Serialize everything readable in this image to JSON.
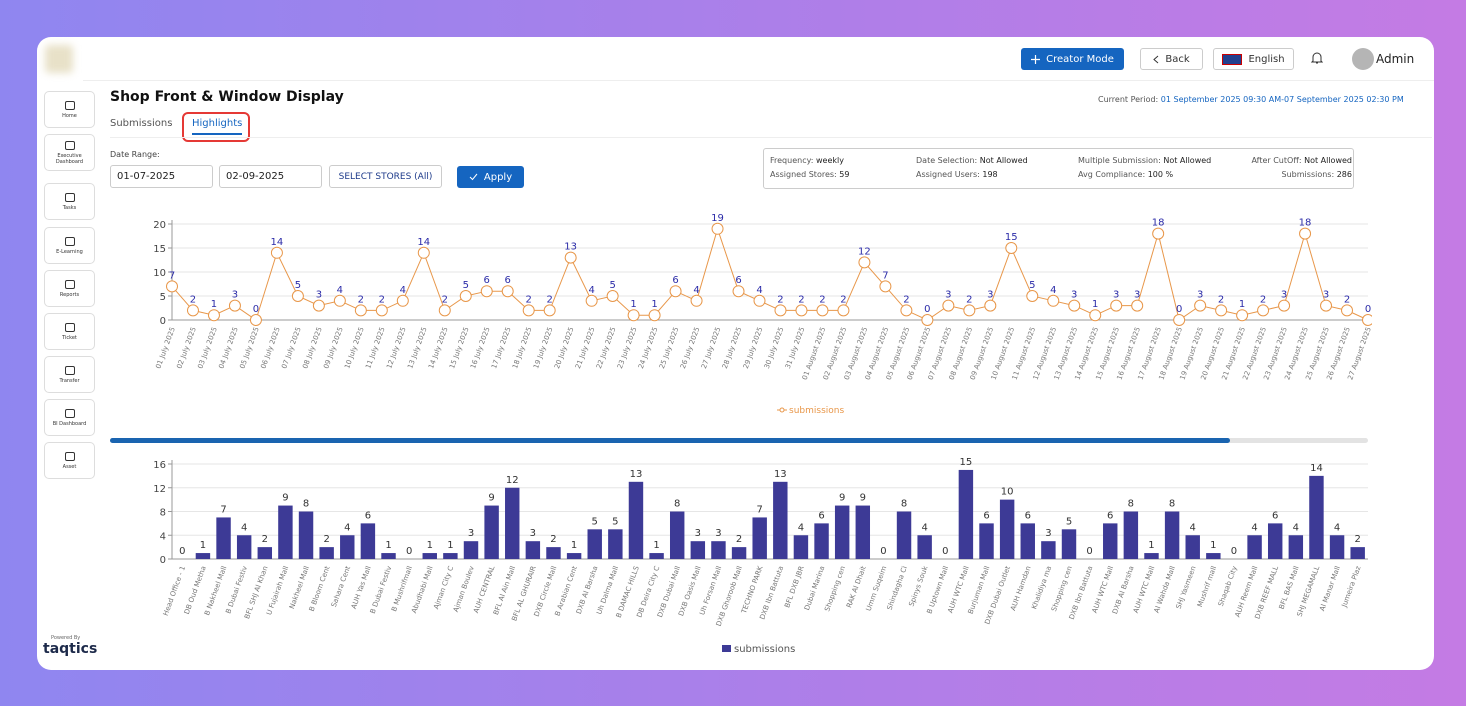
{
  "header": {
    "creator_mode": "Creator Mode",
    "back": "Back",
    "language": "English",
    "user": "Admin"
  },
  "sidebar": [
    "Home",
    "Executive Dashboard",
    "Tasks",
    "E-Learning",
    "Reports",
    "Ticket",
    "Transfer",
    "BI Dashboard",
    "Asset"
  ],
  "footer": {
    "powered_by": "Powered By",
    "brand": "taqtics"
  },
  "page": {
    "title": "Shop Front & Window Display",
    "period_label": "Current Period:",
    "period": "01 September 2025 09:30 AM-07 September 2025 02:30 PM",
    "tabs": [
      "Submissions",
      "Highlights"
    ],
    "date_range_label": "Date Range:",
    "date_from": "01-07-2025",
    "date_to": "02-09-2025",
    "select_stores": "SELECT STORES (All)",
    "apply": "Apply",
    "info": [
      [
        "Frequency:",
        "weekly"
      ],
      [
        "Date Selection:",
        "Not Allowed"
      ],
      [
        "Multiple Submission:",
        "Not Allowed"
      ],
      [
        "After CutOff:",
        "Not Allowed"
      ],
      [
        "Assigned Stores:",
        "59"
      ],
      [
        "Assigned Users:",
        "198"
      ],
      [
        "Avg Compliance:",
        "100 %"
      ],
      [
        "Submissions:",
        "286"
      ]
    ]
  },
  "chart_data": [
    {
      "type": "line",
      "x": [
        "01 July 2025",
        "02 July 2025",
        "03 July 2025",
        "04 July 2025",
        "05 July 2025",
        "06 July 2025",
        "07 July 2025",
        "08 July 2025",
        "09 July 2025",
        "10 July 2025",
        "11 July 2025",
        "12 July 2025",
        "13 July 2025",
        "14 July 2025",
        "15 July 2025",
        "16 July 2025",
        "17 July 2025",
        "18 July 2025",
        "19 July 2025",
        "20 July 2025",
        "21 July 2025",
        "22 July 2025",
        "23 July 2025",
        "24 July 2025",
        "25 July 2025",
        "26 July 2025",
        "27 July 2025",
        "28 July 2025",
        "29 July 2025",
        "30 July 2025",
        "31 July 2025",
        "01 August 2025",
        "02 August 2025",
        "03 August 2025",
        "04 August 2025",
        "05 August 2025",
        "06 August 2025",
        "07 August 2025",
        "08 August 2025",
        "09 August 2025",
        "10 August 2025",
        "11 August 2025",
        "12 August 2025",
        "13 August 2025",
        "14 August 2025",
        "15 August 2025",
        "16 August 2025",
        "17 August 2025",
        "18 August 2025",
        "19 August 2025",
        "20 August 2025",
        "21 August 2025",
        "22 August 2025",
        "23 August 2025",
        "24 August 2025",
        "25 August 2025",
        "26 August 2025",
        "27 August 2025"
      ],
      "series": [
        {
          "name": "submissions",
          "color": "#e8974a",
          "values": [
            7,
            2,
            1,
            3,
            0,
            14,
            5,
            3,
            4,
            2,
            2,
            4,
            14,
            2,
            5,
            6,
            6,
            2,
            2,
            13,
            4,
            5,
            1,
            1,
            6,
            4,
            19,
            6,
            4,
            2,
            2,
            2,
            2,
            12,
            7,
            2,
            0,
            3,
            2,
            3,
            15,
            5,
            4,
            3,
            1,
            3,
            3,
            18,
            0,
            3,
            2,
            1,
            2,
            3,
            18,
            3,
            2,
            0
          ]
        }
      ],
      "ylim": [
        0,
        20
      ],
      "yticks": [
        0,
        5,
        10,
        15,
        20
      ],
      "grid": true
    },
    {
      "type": "bar",
      "categories": [
        "Head Office - 1",
        "DB Oud Metha",
        "B Nakheel Mall",
        "B Dubai Festiv",
        "BFL SHJ Al Khan",
        "U Fujairah Mall",
        "Nakheel Mall",
        "B Bloom Cent",
        "Sahara Cent",
        "AUH Yas Mall",
        "B Dubai Festiv",
        "B Mushrifmall",
        "Abudhabi Mall",
        "Ajman City C",
        "Ajman Boulev",
        "AUH CENTRAL",
        "BFL Al Ain Mall",
        "BFL AL GHURAIR",
        "DXB Circle Mall",
        "B Arabian Cent",
        "DXB Al Barsha",
        "Uh Dalma Mall",
        "B DAMAC HILLS",
        "DB Deira City C",
        "DXB Dubai Mall",
        "DXB Oasis Mall",
        "Uh Forsan Mall",
        "DXB Ghoroob Mall",
        "TECHNO PARK",
        "DXB Ibn Battuta",
        "BFL DXB JBR",
        "Dubai Marina",
        "Shopping cen",
        "RAK Al Dhait",
        "Umm Suqeim",
        "Shindagha Ci",
        "Spinys Souk",
        "B Uptown Mall",
        "AUH WTC Mall",
        "Burjuman Mall",
        "DXB Dubai Outlet",
        "AUH Hamdan",
        "Khalidiya ma",
        "Shopping cen",
        "DXB Ibn Battuta",
        "AUH WTC Mall",
        "DXB Al Barsha",
        "AUH WTC Mall",
        "Al Wahda Mall",
        "SHJ Yasmeen",
        "Mushrif mall",
        "Shaqab City",
        "AUH Reem Mall",
        "DXB REEF MALL",
        "BFL BAS Mall",
        "SHJ MEGAMALL",
        "Al Manar Mall",
        "Jumeira Plaz"
      ],
      "series": [
        {
          "name": "submissions",
          "color": "#3d3a96",
          "values": [
            0,
            1,
            7,
            4,
            2,
            9,
            8,
            2,
            4,
            6,
            1,
            0,
            1,
            1,
            3,
            9,
            12,
            3,
            2,
            1,
            5,
            5,
            13,
            1,
            8,
            3,
            3,
            2,
            7,
            13,
            4,
            6,
            9,
            9,
            0,
            8,
            4,
            0,
            15,
            6,
            10,
            6,
            3,
            5,
            0,
            6,
            8,
            1,
            8,
            4,
            1,
            0,
            4,
            6,
            4,
            14,
            4,
            2
          ]
        }
      ],
      "ylim": [
        0,
        16
      ],
      "yticks": [
        0,
        4,
        8,
        12,
        16
      ],
      "grid": true
    }
  ]
}
